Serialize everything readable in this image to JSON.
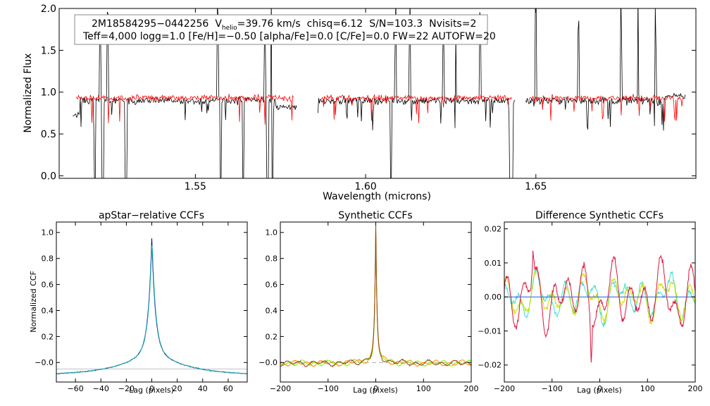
{
  "figure": {
    "background": "#ffffff",
    "foreground": "#000000"
  },
  "chart_data": [
    {
      "id": "spectrum",
      "type": "line",
      "xlabel": "Wavelength (microns)",
      "ylabel": "Normalized Flux",
      "xlim": [
        1.51,
        1.697
      ],
      "ylim": [
        -0.03,
        2.0
      ],
      "xticks": [
        1.55,
        1.6,
        1.65
      ],
      "xtick_labels": [
        "1.55",
        "1.60",
        "1.65"
      ],
      "yticks": [
        0.0,
        0.5,
        1.0,
        1.5,
        2.0
      ],
      "ytick_labels": [
        "0.0",
        "0.5",
        "1.0",
        "1.5",
        "2.0"
      ],
      "annotation": {
        "star_id": "2M18584295−0442256",
        "v_label": "V",
        "v_sub": "helio",
        "v_value": "=39.76 km/s",
        "chisq": "chisq=6.12",
        "snr": "S/N=103.3",
        "nvisits": "Nvisits=2",
        "line2": "Teff=4,000 logg=1.0 [Fe/H]=−0.50 [alpha/Fe]=0.0 [C/Fe]=0.0 FW=22 AUTOFW=20"
      },
      "chips": [
        [
          1.514,
          1.58
        ],
        [
          1.586,
          1.644
        ],
        [
          1.647,
          1.694
        ]
      ],
      "model_chips": [
        [
          1.515,
          1.579
        ],
        [
          1.587,
          1.643
        ],
        [
          1.648,
          1.6935
        ]
      ],
      "series": [
        {
          "name": "observed",
          "color": "#000000",
          "continuum": 0.9,
          "noise": 0.045
        },
        {
          "name": "model",
          "color": "#ff0000",
          "continuum": 0.93,
          "noise": 0.035
        }
      ],
      "deep_lines": [
        1.5205,
        1.5228,
        1.5296,
        1.5575,
        1.564,
        1.5712,
        1.5725,
        1.6075,
        1.6425,
        1.643,
        1.6625
      ],
      "spikes": [
        1.522,
        1.5243,
        1.5565,
        1.5705,
        1.5723,
        1.6088,
        1.613,
        1.6228,
        1.6265,
        1.6337,
        1.65,
        1.6625,
        1.675,
        1.68,
        1.6852
      ]
    },
    {
      "id": "apstar-ccf",
      "type": "line",
      "title": "apStar−relative CCFs",
      "xlabel": "Lag (pixels)",
      "ylabel": "Normalized CCF",
      "xlim": [
        -75,
        75
      ],
      "ylim": [
        -0.15,
        1.08
      ],
      "xticks": [
        -60,
        -40,
        -20,
        0,
        20,
        40,
        60
      ],
      "xtick_labels": [
        "−60",
        "−40",
        "−20",
        "0",
        "20",
        "40",
        "60"
      ],
      "yticks": [
        0.0,
        0.2,
        0.4,
        0.6,
        0.8,
        1.0
      ],
      "ytick_labels": [
        "−0.0",
        "0.2",
        "0.4",
        "0.6",
        "0.8",
        "1.0"
      ],
      "zero_line": {
        "y": -0.05,
        "color": "#888888"
      },
      "series": [
        {
          "name": "visit-1",
          "color": "#00008b",
          "peak": 0.995,
          "shift": 0.0
        },
        {
          "name": "visit-2",
          "color": "#20b2aa",
          "peak": 1.0,
          "shift": 0.2
        }
      ]
    },
    {
      "id": "synthetic-ccf",
      "type": "line",
      "title": "Synthetic CCFs",
      "xlabel": "Lag (pixels)",
      "ylabel": "",
      "xlim": [
        -200,
        200
      ],
      "ylim": [
        -0.15,
        1.08
      ],
      "xticks": [
        -200,
        -100,
        0,
        100,
        200
      ],
      "xtick_labels": [
        "−200",
        "−100",
        "0",
        "100",
        "200"
      ],
      "yticks": [
        0.0,
        0.2,
        0.4,
        0.6,
        0.8,
        1.0
      ],
      "ytick_labels": [
        "−0.0",
        "0.2",
        "0.4",
        "0.6",
        "0.8",
        "1.0"
      ],
      "zero_line": {
        "y": 0.0,
        "color": "#888888"
      },
      "series": [
        {
          "name": "synthetic-green",
          "color": "#7cfc00"
        },
        {
          "name": "synthetic-orange",
          "color": "#ff8c00"
        },
        {
          "name": "synthetic-brown",
          "color": "#8b4513"
        }
      ]
    },
    {
      "id": "difference-ccf",
      "type": "line",
      "title": "Difference Synthetic CCFs",
      "xlabel": "Lag (pixels)",
      "ylabel": "",
      "xlim": [
        -200,
        200
      ],
      "ylim": [
        -0.025,
        0.022
      ],
      "xticks": [
        -200,
        -100,
        0,
        100,
        200
      ],
      "xtick_labels": [
        "−200",
        "−100",
        "0",
        "100",
        "200"
      ],
      "yticks": [
        -0.02,
        -0.01,
        0.0,
        0.01,
        0.02
      ],
      "ytick_labels": [
        "−0.02",
        "−0.01",
        "0.00",
        "0.01",
        "0.02"
      ],
      "zero_line": {
        "y": 0.0,
        "color": "#4169e1"
      },
      "series": [
        {
          "name": "diff-cyan",
          "color": "#40e0d0"
        },
        {
          "name": "diff-yellow",
          "color": "#c8e000"
        },
        {
          "name": "diff-red",
          "color": "#dc143c"
        }
      ]
    }
  ]
}
